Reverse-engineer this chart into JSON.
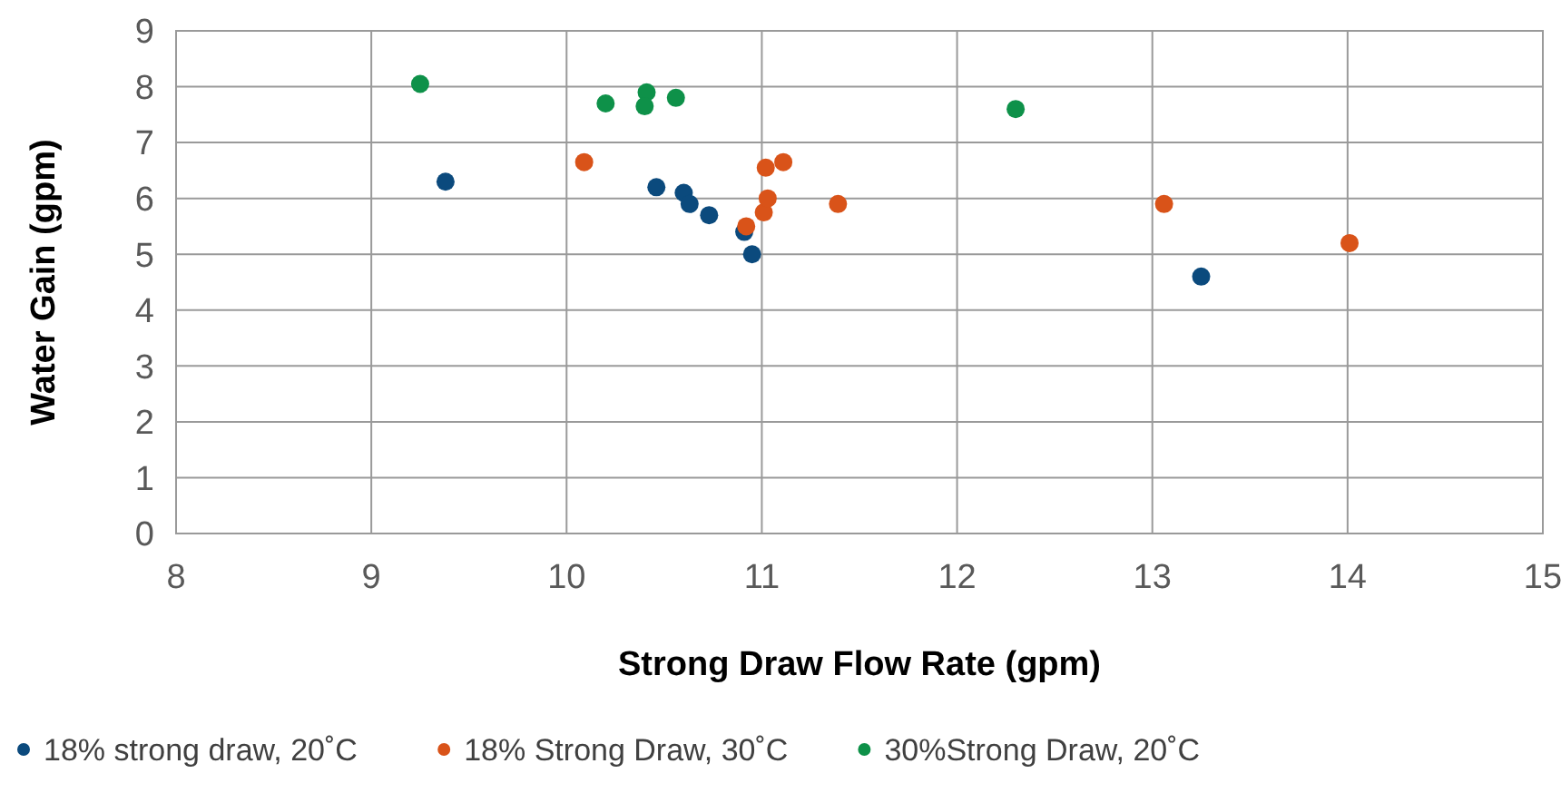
{
  "chart_data": {
    "type": "scatter",
    "xlabel": "Strong Draw Flow Rate (gpm)",
    "ylabel": "Water Gain (gpm)",
    "xlim": [
      8,
      15
    ],
    "xticks": [
      8,
      9,
      10,
      11,
      12,
      13,
      14,
      15
    ],
    "ylim": [
      0,
      9
    ],
    "yticks": [
      0,
      1,
      2,
      3,
      4,
      5,
      6,
      7,
      8,
      9
    ],
    "grid": true,
    "legend": "bottom",
    "marker": "circle",
    "series": [
      {
        "name": "18% strong draw, 20˚C",
        "color": "#0b4a7d",
        "x": [
          9.38,
          10.46,
          10.6,
          10.63,
          10.73,
          10.91,
          10.95,
          13.25
        ],
        "values": [
          6.3,
          6.2,
          6.1,
          5.9,
          5.7,
          5.4,
          5.0,
          4.6
        ]
      },
      {
        "name": "18% Strong Draw, 30˚C",
        "color": "#d95319",
        "x": [
          10.09,
          10.92,
          11.01,
          11.03,
          11.02,
          11.11,
          11.39,
          13.06,
          14.01
        ],
        "values": [
          6.65,
          5.5,
          5.75,
          6.0,
          6.55,
          6.65,
          5.9,
          5.9,
          5.2
        ]
      },
      {
        "name": "30%Strong Draw, 20˚C",
        "color": "#0e9149",
        "x": [
          9.25,
          10.2,
          10.41,
          10.4,
          10.56,
          12.3
        ],
        "values": [
          8.05,
          7.7,
          7.9,
          7.65,
          7.8,
          7.6
        ]
      }
    ]
  }
}
